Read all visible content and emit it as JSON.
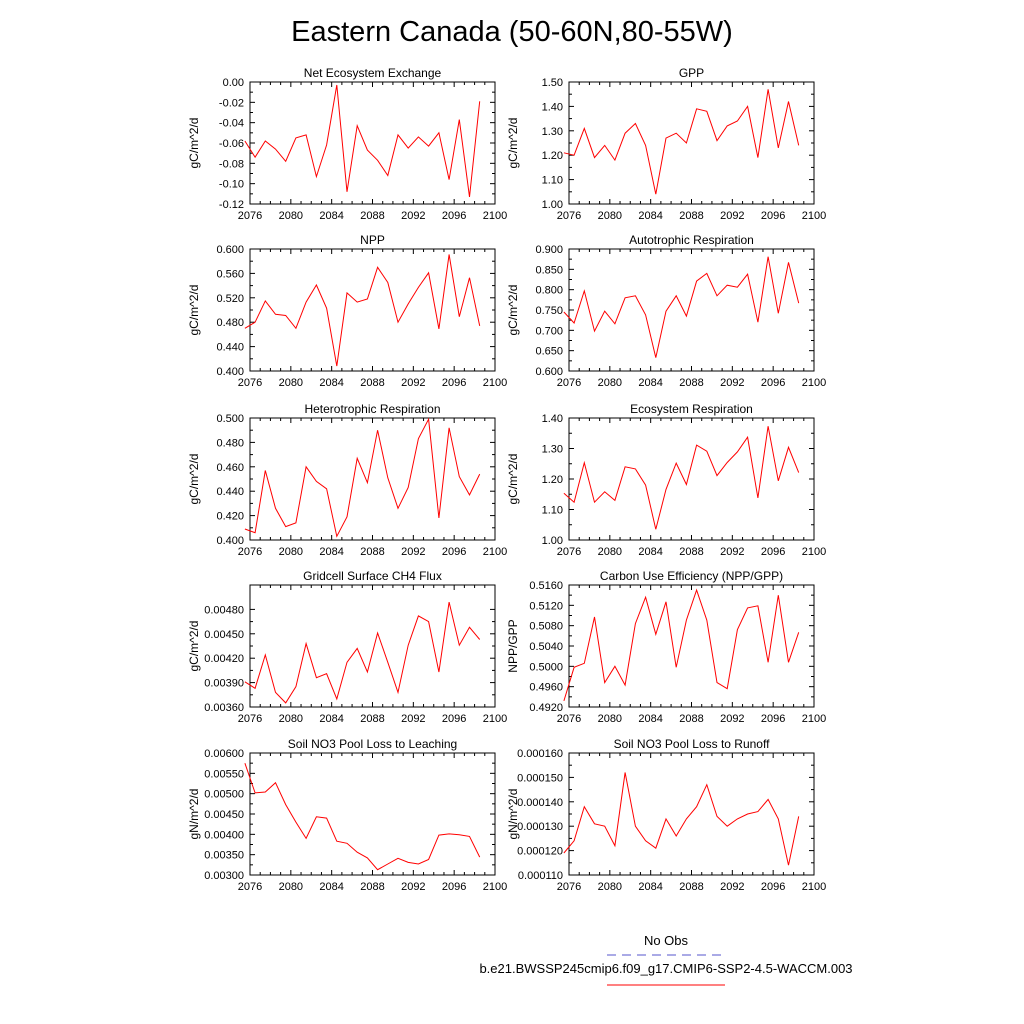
{
  "title": "Eastern Canada (50-60N,80-55W)",
  "legend": {
    "obs_label": "No Obs",
    "obs_color": "#5555cc",
    "model_label": "b.e21.BWSSP245cmip6.f09_g17.CMIP6-SSP2-4.5-WACCM.003",
    "model_color": "#ff0000"
  },
  "line_color": "#ff0000",
  "chart_data": [
    {
      "type": "line",
      "title": "Net Ecosystem Exchange",
      "ylabel": "gC/m^2/d",
      "xlim": [
        2076,
        2100
      ],
      "xticks": [
        "2076",
        "2080",
        "2084",
        "2088",
        "2092",
        "2096",
        "2100"
      ],
      "ylim": [
        -0.12,
        0.0
      ],
      "yticks": [
        "-0.12",
        "-0.10",
        "-0.08",
        "-0.06",
        "-0.04",
        "-0.02",
        "0.00"
      ],
      "x": [
        2075.5,
        2076.5,
        2077.5,
        2078.5,
        2079.5,
        2080.5,
        2081.5,
        2082.5,
        2083.5,
        2084.5,
        2085.5,
        2086.5,
        2087.5,
        2088.5,
        2089.5,
        2090.5,
        2091.5,
        2092.5,
        2093.5,
        2094.5,
        2095.5,
        2096.5,
        2097.5,
        2098.5
      ],
      "values": [
        -0.058,
        -0.074,
        -0.058,
        -0.066,
        -0.078,
        -0.055,
        -0.052,
        -0.093,
        -0.062,
        -0.003,
        -0.108,
        -0.043,
        -0.067,
        -0.077,
        -0.092,
        -0.052,
        -0.065,
        -0.054,
        -0.063,
        -0.05,
        -0.096,
        -0.037,
        -0.113,
        -0.019
      ]
    },
    {
      "type": "line",
      "title": "GPP",
      "ylabel": "gC/m^2/d",
      "xlim": [
        2076,
        2100
      ],
      "xticks": [
        "2076",
        "2080",
        "2084",
        "2088",
        "2092",
        "2096",
        "2100"
      ],
      "ylim": [
        1.0,
        1.5
      ],
      "yticks": [
        "1.00",
        "1.10",
        "1.20",
        "1.30",
        "1.40",
        "1.50"
      ],
      "x": [
        2075.5,
        2076.5,
        2077.5,
        2078.5,
        2079.5,
        2080.5,
        2081.5,
        2082.5,
        2083.5,
        2084.5,
        2085.5,
        2086.5,
        2087.5,
        2088.5,
        2089.5,
        2090.5,
        2091.5,
        2092.5,
        2093.5,
        2094.5,
        2095.5,
        2096.5,
        2097.5,
        2098.5
      ],
      "values": [
        1.21,
        1.2,
        1.31,
        1.19,
        1.24,
        1.18,
        1.29,
        1.33,
        1.24,
        1.04,
        1.27,
        1.29,
        1.25,
        1.39,
        1.38,
        1.26,
        1.32,
        1.34,
        1.4,
        1.19,
        1.47,
        1.23,
        1.42,
        1.24
      ]
    },
    {
      "type": "line",
      "title": "NPP",
      "ylabel": "gC/m^2/d",
      "xlim": [
        2076,
        2100
      ],
      "xticks": [
        "2076",
        "2080",
        "2084",
        "2088",
        "2092",
        "2096",
        "2100"
      ],
      "ylim": [
        0.4,
        0.6
      ],
      "yticks": [
        "0.400",
        "0.440",
        "0.480",
        "0.520",
        "0.560",
        "0.600"
      ],
      "x": [
        2075.5,
        2076.5,
        2077.5,
        2078.5,
        2079.5,
        2080.5,
        2081.5,
        2082.5,
        2083.5,
        2084.5,
        2085.5,
        2086.5,
        2087.5,
        2088.5,
        2089.5,
        2090.5,
        2091.5,
        2092.5,
        2093.5,
        2094.5,
        2095.5,
        2096.5,
        2097.5,
        2098.5
      ],
      "values": [
        0.47,
        0.48,
        0.515,
        0.493,
        0.491,
        0.47,
        0.513,
        0.541,
        0.503,
        0.408,
        0.528,
        0.513,
        0.518,
        0.57,
        0.545,
        0.48,
        0.51,
        0.537,
        0.561,
        0.469,
        0.591,
        0.489,
        0.553,
        0.474
      ]
    },
    {
      "type": "line",
      "title": "Autotrophic Respiration",
      "ylabel": "gC/m^2/d",
      "xlim": [
        2076,
        2100
      ],
      "xticks": [
        "2076",
        "2080",
        "2084",
        "2088",
        "2092",
        "2096",
        "2100"
      ],
      "ylim": [
        0.6,
        0.9
      ],
      "yticks": [
        "0.600",
        "0.650",
        "0.700",
        "0.750",
        "0.800",
        "0.850",
        "0.900"
      ],
      "x": [
        2075.5,
        2076.5,
        2077.5,
        2078.5,
        2079.5,
        2080.5,
        2081.5,
        2082.5,
        2083.5,
        2084.5,
        2085.5,
        2086.5,
        2087.5,
        2088.5,
        2089.5,
        2090.5,
        2091.5,
        2092.5,
        2093.5,
        2094.5,
        2095.5,
        2096.5,
        2097.5,
        2098.5
      ],
      "values": [
        0.745,
        0.718,
        0.797,
        0.698,
        0.747,
        0.716,
        0.78,
        0.785,
        0.738,
        0.633,
        0.747,
        0.785,
        0.735,
        0.821,
        0.84,
        0.785,
        0.811,
        0.806,
        0.838,
        0.72,
        0.881,
        0.742,
        0.867,
        0.767
      ]
    },
    {
      "type": "line",
      "title": "Heterotrophic Respiration",
      "ylabel": "gC/m^2/d",
      "xlim": [
        2076,
        2100
      ],
      "xticks": [
        "2076",
        "2080",
        "2084",
        "2088",
        "2092",
        "2096",
        "2100"
      ],
      "ylim": [
        0.4,
        0.5
      ],
      "yticks": [
        "0.400",
        "0.420",
        "0.440",
        "0.460",
        "0.480",
        "0.500"
      ],
      "x": [
        2075.5,
        2076.5,
        2077.5,
        2078.5,
        2079.5,
        2080.5,
        2081.5,
        2082.5,
        2083.5,
        2084.5,
        2085.5,
        2086.5,
        2087.5,
        2088.5,
        2089.5,
        2090.5,
        2091.5,
        2092.5,
        2093.5,
        2094.5,
        2095.5,
        2096.5,
        2097.5,
        2098.5
      ],
      "values": [
        0.409,
        0.406,
        0.457,
        0.426,
        0.411,
        0.414,
        0.46,
        0.448,
        0.442,
        0.403,
        0.419,
        0.467,
        0.447,
        0.49,
        0.451,
        0.426,
        0.443,
        0.483,
        0.499,
        0.418,
        0.492,
        0.452,
        0.437,
        0.454
      ]
    },
    {
      "type": "line",
      "title": "Ecosystem Respiration",
      "ylabel": "gC/m^2/d",
      "xlim": [
        2076,
        2100
      ],
      "xticks": [
        "2076",
        "2080",
        "2084",
        "2088",
        "2092",
        "2096",
        "2100"
      ],
      "ylim": [
        1.0,
        1.4
      ],
      "yticks": [
        "1.00",
        "1.10",
        "1.20",
        "1.30",
        "1.40"
      ],
      "x": [
        2075.5,
        2076.5,
        2077.5,
        2078.5,
        2079.5,
        2080.5,
        2081.5,
        2082.5,
        2083.5,
        2084.5,
        2085.5,
        2086.5,
        2087.5,
        2088.5,
        2089.5,
        2090.5,
        2091.5,
        2092.5,
        2093.5,
        2094.5,
        2095.5,
        2096.5,
        2097.5,
        2098.5
      ],
      "values": [
        1.153,
        1.124,
        1.253,
        1.124,
        1.158,
        1.13,
        1.24,
        1.233,
        1.18,
        1.035,
        1.166,
        1.252,
        1.182,
        1.311,
        1.291,
        1.211,
        1.254,
        1.289,
        1.337,
        1.138,
        1.373,
        1.194,
        1.304,
        1.221
      ]
    },
    {
      "type": "line",
      "title": "Gridcell Surface CH4 Flux",
      "ylabel": "gC/m^2/d",
      "xlim": [
        2076,
        2100
      ],
      "xticks": [
        "2076",
        "2080",
        "2084",
        "2088",
        "2092",
        "2096",
        "2100"
      ],
      "ylim": [
        0.0036,
        0.0051
      ],
      "yticks": [
        "0.00360",
        "0.00390",
        "0.00420",
        "0.00450",
        "0.00480"
      ],
      "x": [
        2075.5,
        2076.5,
        2077.5,
        2078.5,
        2079.5,
        2080.5,
        2081.5,
        2082.5,
        2083.5,
        2084.5,
        2085.5,
        2086.5,
        2087.5,
        2088.5,
        2089.5,
        2090.5,
        2091.5,
        2092.5,
        2093.5,
        2094.5,
        2095.5,
        2096.5,
        2097.5,
        2098.5
      ],
      "values": [
        0.00391,
        0.00383,
        0.00424,
        0.00378,
        0.00365,
        0.00385,
        0.00438,
        0.00396,
        0.00401,
        0.0037,
        0.00415,
        0.00432,
        0.00403,
        0.00451,
        0.00415,
        0.00378,
        0.00436,
        0.00472,
        0.00465,
        0.00403,
        0.00489,
        0.00436,
        0.00458,
        0.00443
      ]
    },
    {
      "type": "line",
      "title": "Carbon Use Efficiency (NPP/GPP)",
      "ylabel": "NPP/GPP",
      "xlim": [
        2076,
        2100
      ],
      "xticks": [
        "2076",
        "2080",
        "2084",
        "2088",
        "2092",
        "2096",
        "2100"
      ],
      "ylim": [
        0.492,
        0.516
      ],
      "yticks": [
        "0.4920",
        "0.4960",
        "0.5000",
        "0.5040",
        "0.5080",
        "0.5120",
        "0.5160"
      ],
      "x": [
        2075.5,
        2076.5,
        2077.5,
        2078.5,
        2079.5,
        2080.5,
        2081.5,
        2082.5,
        2083.5,
        2084.5,
        2085.5,
        2086.5,
        2087.5,
        2088.5,
        2089.5,
        2090.5,
        2091.5,
        2092.5,
        2093.5,
        2094.5,
        2095.5,
        2096.5,
        2097.5,
        2098.5
      ],
      "values": [
        0.4932,
        0.4998,
        0.5006,
        0.5097,
        0.4968,
        0.5,
        0.4963,
        0.5084,
        0.5136,
        0.5063,
        0.5127,
        0.4998,
        0.5091,
        0.515,
        0.5091,
        0.4968,
        0.4956,
        0.5072,
        0.5115,
        0.5119,
        0.5008,
        0.514,
        0.5008,
        0.5067
      ]
    },
    {
      "type": "line",
      "title": "Soil NO3 Pool Loss to Leaching",
      "ylabel": "gN/m^2/d",
      "xlim": [
        2076,
        2100
      ],
      "xticks": [
        "2076",
        "2080",
        "2084",
        "2088",
        "2092",
        "2096",
        "2100"
      ],
      "ylim": [
        0.003,
        0.006
      ],
      "yticks": [
        "0.00300",
        "0.00350",
        "0.00400",
        "0.00450",
        "0.00500",
        "0.00550",
        "0.00600"
      ],
      "x": [
        2075.5,
        2076.5,
        2077.5,
        2078.5,
        2079.5,
        2080.5,
        2081.5,
        2082.5,
        2083.5,
        2084.5,
        2085.5,
        2086.5,
        2087.5,
        2088.5,
        2089.5,
        2090.5,
        2091.5,
        2092.5,
        2093.5,
        2094.5,
        2095.5,
        2096.5,
        2097.5,
        2098.5
      ],
      "values": [
        0.00575,
        0.00502,
        0.00504,
        0.00527,
        0.00473,
        0.0043,
        0.0039,
        0.00443,
        0.0044,
        0.00383,
        0.00378,
        0.00356,
        0.00342,
        0.00313,
        0.00327,
        0.00341,
        0.00331,
        0.00327,
        0.00338,
        0.00398,
        0.00401,
        0.00399,
        0.00395,
        0.00344
      ]
    },
    {
      "type": "line",
      "title": "Soil NO3 Pool Loss to Runoff",
      "ylabel": "gN/m^2/d",
      "xlim": [
        2076,
        2100
      ],
      "xticks": [
        "2076",
        "2080",
        "2084",
        "2088",
        "2092",
        "2096",
        "2100"
      ],
      "ylim": [
        0.00011,
        0.00016
      ],
      "yticks": [
        "0.000110",
        "0.000120",
        "0.000130",
        "0.000140",
        "0.000150",
        "0.000160"
      ],
      "x": [
        2075.5,
        2076.5,
        2077.5,
        2078.5,
        2079.5,
        2080.5,
        2081.5,
        2082.5,
        2083.5,
        2084.5,
        2085.5,
        2086.5,
        2087.5,
        2088.5,
        2089.5,
        2090.5,
        2091.5,
        2092.5,
        2093.5,
        2094.5,
        2095.5,
        2096.5,
        2097.5,
        2098.5
      ],
      "values": [
        0.000119,
        0.000124,
        0.000138,
        0.000131,
        0.00013,
        0.000122,
        0.000152,
        0.00013,
        0.000124,
        0.000121,
        0.000133,
        0.000126,
        0.000133,
        0.000138,
        0.000147,
        0.000134,
        0.00013,
        0.000133,
        0.000135,
        0.000136,
        0.000141,
        0.000133,
        0.000114,
        0.000134
      ]
    }
  ]
}
